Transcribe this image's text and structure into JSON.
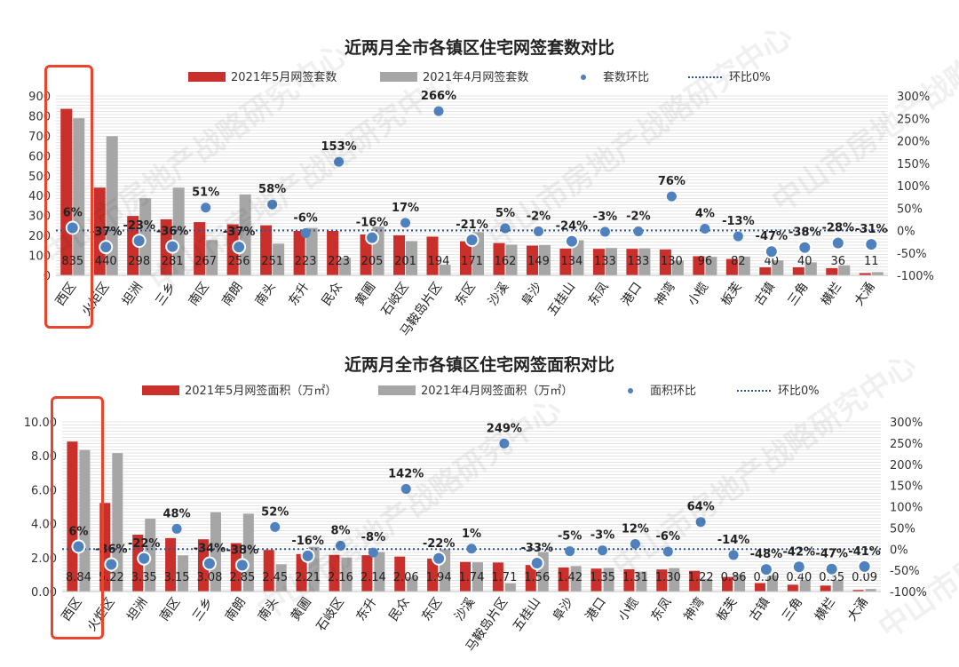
{
  "chart_data": [
    {
      "type": "bar",
      "title": "近两月全市各镇区住宅网签套数对比",
      "categories": [
        "西区",
        "火炬区",
        "坦洲",
        "三乡",
        "南区",
        "南朗",
        "南头",
        "东升",
        "民众",
        "黄圃",
        "石岐区",
        "马鞍岛片区",
        "东区",
        "沙溪",
        "阜沙",
        "五桂山",
        "东凤",
        "港口",
        "神湾",
        "小榄",
        "板芙",
        "古镇",
        "三角",
        "横栏",
        "大涌"
      ],
      "series": [
        {
          "name": "2021年5月网签套数",
          "type": "bar",
          "axis": "left",
          "color": "#c9302c",
          "values": [
            835,
            440,
            298,
            281,
            267,
            256,
            251,
            223,
            223,
            205,
            201,
            194,
            171,
            162,
            149,
            134,
            133,
            133,
            130,
            96,
            82,
            40,
            40,
            36,
            11
          ]
        },
        {
          "name": "2021年4月网签套数",
          "type": "bar",
          "axis": "left",
          "color": "#a6a6a6",
          "values": [
            788,
            698,
            387,
            440,
            177,
            406,
            159,
            238,
            88,
            244,
            172,
            53,
            217,
            154,
            152,
            176,
            137,
            135,
            74,
            93,
            94,
            75,
            65,
            50,
            16
          ]
        },
        {
          "name": "套数环比",
          "type": "scatter",
          "axis": "right",
          "color": "#4e81bd",
          "values": [
            6,
            -37,
            -23,
            -36,
            51,
            -37,
            58,
            -6,
            153,
            -16,
            17,
            266,
            -21,
            5,
            -2,
            -24,
            -3,
            -2,
            76,
            4,
            -13,
            -47,
            -38,
            -28,
            -31
          ]
        },
        {
          "name": "环比0%",
          "type": "reference-line",
          "axis": "right",
          "value": 0
        }
      ],
      "bar_labels": [
        "835",
        "440",
        "298",
        "281",
        "267",
        "256",
        "251",
        "223",
        "223",
        "205",
        "201",
        "194",
        "171",
        "162",
        "149",
        "134",
        "133",
        "133",
        "130",
        "96",
        "82",
        "40",
        "40",
        "36",
        "11"
      ],
      "point_labels": [
        "6%",
        "-37%",
        "-23%",
        "-36%",
        "51%",
        "-37%",
        "58%",
        "-6%",
        "153%",
        "-16%",
        "17%",
        "266%",
        "-21%",
        "5%",
        "-2%",
        "-24%",
        "-3%",
        "-2%",
        "76%",
        "4%",
        "-13%",
        "-47%",
        "-38%",
        "-28%",
        "-31%"
      ],
      "left_ticks": [
        "0",
        "100",
        "200",
        "300",
        "400",
        "500",
        "600",
        "700",
        "800",
        "900"
      ],
      "left_range": [
        0,
        900
      ],
      "right_ticks": [
        "-100%",
        "-50%",
        "0%",
        "50%",
        "100%",
        "150%",
        "200%",
        "250%",
        "300%"
      ],
      "right_range": [
        -100,
        300
      ],
      "legend_position": "top-center",
      "gridlines": true,
      "highlight_category": "西区"
    },
    {
      "type": "bar",
      "title": "近两月全市各镇区住宅网签面积对比",
      "categories": [
        "西区",
        "火炬区",
        "坦洲",
        "南区",
        "三乡",
        "南朗",
        "南头",
        "黄圃",
        "石岐区",
        "东升",
        "民众",
        "东区",
        "沙溪",
        "马鞍岛片区",
        "五桂山",
        "阜沙",
        "港口",
        "小榄",
        "东凤",
        "神湾",
        "板芙",
        "古镇",
        "三角",
        "横栏",
        "大涌"
      ],
      "series": [
        {
          "name": "2021年5月网签面积（万㎡）",
          "type": "bar",
          "axis": "left",
          "color": "#c9302c",
          "values": [
            8.84,
            5.22,
            3.35,
            3.15,
            3.08,
            2.85,
            2.45,
            2.21,
            2.16,
            2.14,
            2.06,
            1.94,
            1.74,
            1.71,
            1.56,
            1.42,
            1.35,
            1.31,
            1.3,
            1.22,
            0.86,
            0.5,
            0.4,
            0.35,
            0.09
          ]
        },
        {
          "name": "2021年4月网签面积（万㎡）",
          "type": "bar",
          "axis": "left",
          "color": "#a6a6a6",
          "values": [
            8.34,
            8.16,
            4.29,
            2.13,
            4.67,
            4.59,
            1.61,
            2.63,
            2.0,
            2.33,
            0.85,
            2.49,
            1.72,
            0.49,
            2.33,
            1.5,
            1.39,
            1.17,
            1.38,
            0.74,
            1.0,
            0.96,
            0.69,
            0.66,
            0.15
          ]
        },
        {
          "name": "面积环比",
          "type": "scatter",
          "axis": "right",
          "color": "#4e81bd",
          "values": [
            6,
            -36,
            -22,
            48,
            -34,
            -38,
            52,
            -16,
            8,
            -8,
            142,
            -22,
            1,
            249,
            -33,
            -5,
            -3,
            12,
            -6,
            64,
            -14,
            -48,
            -42,
            -47,
            -41
          ]
        },
        {
          "name": "环比0%",
          "type": "reference-line",
          "axis": "right",
          "value": 0
        }
      ],
      "bar_labels": [
        "8.84",
        "5.22",
        "3.35",
        "3.15",
        "3.08",
        "2.85",
        "2.45",
        "2.21",
        "2.16",
        "2.14",
        "2.06",
        "1.94",
        "1.74",
        "1.71",
        "1.56",
        "1.42",
        "1.35",
        "1.31",
        "1.30",
        "1.22",
        "0.86",
        "0.50",
        "0.40",
        "0.35",
        "0.09"
      ],
      "point_labels": [
        "6%",
        "-36%",
        "-22%",
        "48%",
        "-34%",
        "-38%",
        "52%",
        "-16%",
        "8%",
        "-8%",
        "142%",
        "-22%",
        "1%",
        "249%",
        "-33%",
        "-5%",
        "-3%",
        "12%",
        "-6%",
        "64%",
        "-14%",
        "-48%",
        "-42%",
        "-47%",
        "-41%"
      ],
      "left_ticks": [
        "0.00",
        "2.00",
        "4.00",
        "6.00",
        "8.00",
        "10.00"
      ],
      "left_range": [
        0,
        10
      ],
      "right_ticks": [
        "-100%",
        "-50%",
        "0%",
        "50%",
        "100%",
        "150%",
        "200%",
        "250%",
        "300%"
      ],
      "right_range": [
        -100,
        300
      ],
      "legend_position": "top-center",
      "gridlines": true,
      "highlight_category": "西区"
    }
  ],
  "watermark": "中山市房地产战略研究中心",
  "colors": {
    "current": "#c9302c",
    "previous": "#a6a6a6",
    "ratio": "#4e81bd",
    "highlight": "#e8452c"
  }
}
